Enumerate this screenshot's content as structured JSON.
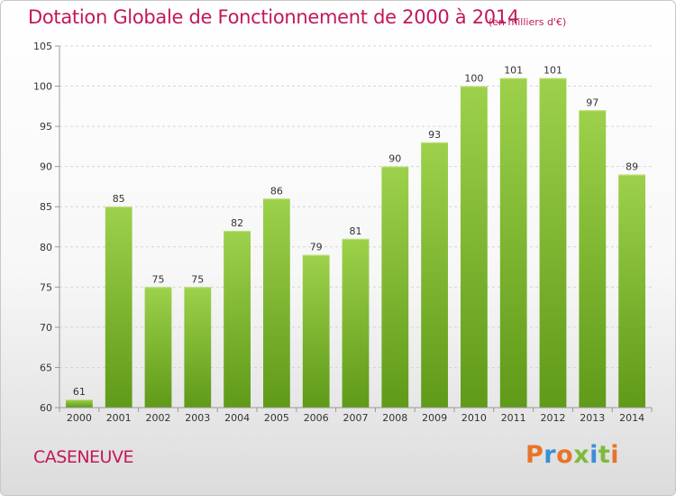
{
  "header": {
    "title": "Dotation Globale de Fonctionnement de 2000 à 2014",
    "subtitle": "(en milliers d'€)"
  },
  "footer": {
    "commune": "CASENEUVE",
    "logo": {
      "letters": [
        "P",
        "r",
        "o",
        "x",
        "i",
        "t",
        "i"
      ],
      "colors": [
        "#e8742a",
        "#3a8fd6",
        "#e8742a",
        "#7fba3c",
        "#3a8fd6",
        "#7fba3c",
        "#e8742a"
      ]
    }
  },
  "chart_data": {
    "type": "bar",
    "categories": [
      "2000",
      "2001",
      "2002",
      "2003",
      "2004",
      "2005",
      "2006",
      "2007",
      "2008",
      "2009",
      "2010",
      "2011",
      "2012",
      "2013",
      "2014"
    ],
    "values": [
      61,
      85,
      75,
      75,
      82,
      86,
      79,
      81,
      90,
      93,
      100,
      101,
      101,
      97,
      89
    ],
    "data_labels": [
      "61",
      "85",
      "75",
      "75",
      "82",
      "86",
      "79",
      "81",
      "90",
      "93",
      "100",
      "101",
      "101",
      "97",
      "89"
    ],
    "y_ticks": [
      60,
      65,
      70,
      75,
      80,
      85,
      90,
      95,
      100,
      105
    ],
    "ylim": [
      60,
      105
    ],
    "grid": true,
    "colors": {
      "bar_top": "#9dd14b",
      "bar_bottom": "#5f9a18",
      "grid": "#d6d6d6",
      "axis": "#999999"
    }
  }
}
